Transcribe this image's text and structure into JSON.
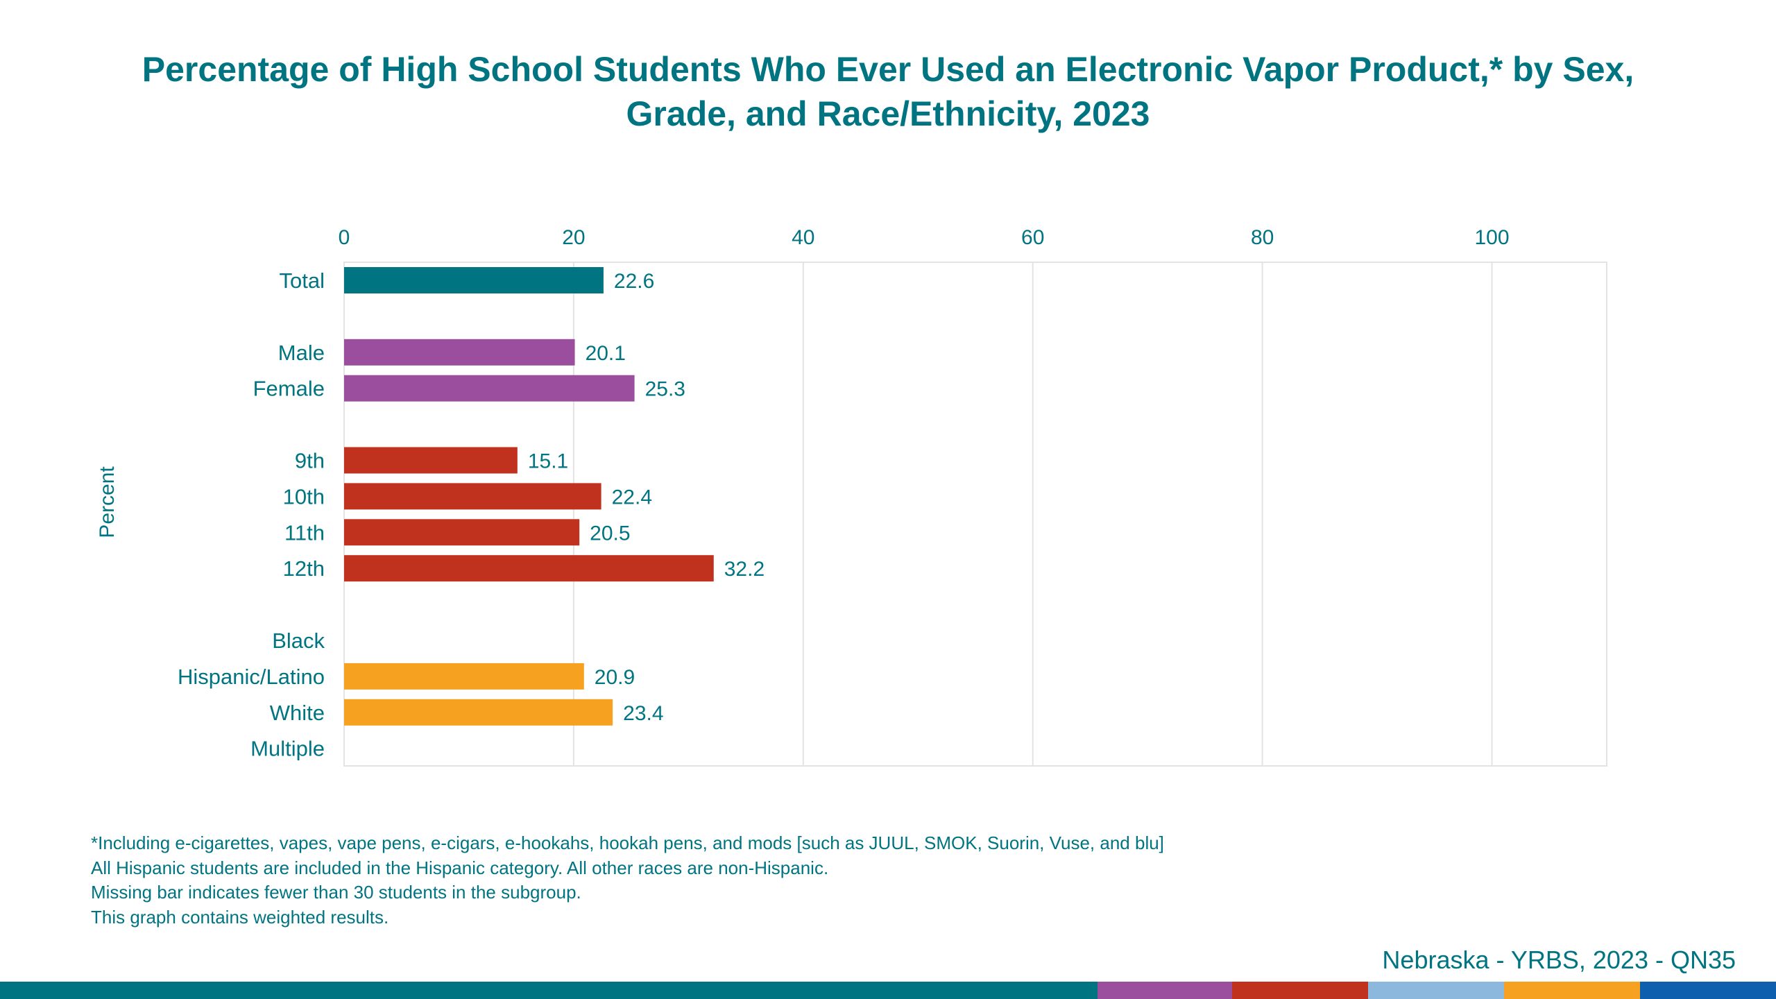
{
  "chart_data": {
    "type": "bar",
    "orientation": "horizontal",
    "title": "Percentage of High School Students Who Ever Used an Electronic Vapor Product,* by Sex, Grade, and Race/Ethnicity, 2023",
    "xlabel": "",
    "ylabel": "Percent",
    "xlim": [
      0,
      110
    ],
    "ticks": [
      0,
      20,
      40,
      60,
      80,
      100
    ],
    "grid": true,
    "legend": "none",
    "rows": [
      {
        "label": "Total",
        "value": 22.6,
        "group": "total"
      },
      {
        "label": "",
        "value": null,
        "group": "gap"
      },
      {
        "label": "Male",
        "value": 20.1,
        "group": "sex"
      },
      {
        "label": "Female",
        "value": 25.3,
        "group": "sex"
      },
      {
        "label": "",
        "value": null,
        "group": "gap"
      },
      {
        "label": "9th",
        "value": 15.1,
        "group": "grade"
      },
      {
        "label": "10th",
        "value": 22.4,
        "group": "grade"
      },
      {
        "label": "11th",
        "value": 20.5,
        "group": "grade"
      },
      {
        "label": "12th",
        "value": 32.2,
        "group": "grade"
      },
      {
        "label": "",
        "value": null,
        "group": "gap"
      },
      {
        "label": "Black",
        "value": null,
        "group": "race"
      },
      {
        "label": "Hispanic/Latino",
        "value": 20.9,
        "group": "race"
      },
      {
        "label": "White",
        "value": 23.4,
        "group": "race"
      },
      {
        "label": "Multiple",
        "value": null,
        "group": "race"
      }
    ],
    "group_colors": {
      "total": "#007481",
      "sex": "#9c4e9e",
      "grade": "#c0321e",
      "race": "#f6a11f"
    }
  },
  "footnotes": [
    "*Including e-cigarettes, vapes, vape pens, e-cigars, e-hookahs, hookah pens, and mods [such as JUUL, SMOK, Suorin, Vuse, and blu]",
    "All Hispanic students are included in the Hispanic category.  All other races are non-Hispanic.",
    "Missing bar indicates fewer than 30 students in the subgroup.",
    "This graph contains weighted results."
  ],
  "source": "Nebraska - YRBS, 2023 - QN35",
  "colors": {
    "text": "#007481",
    "band": [
      "#007481",
      "#9c4e9e",
      "#c0321e",
      "#8bb8dc",
      "#f6a11f",
      "#0e5fad"
    ]
  }
}
